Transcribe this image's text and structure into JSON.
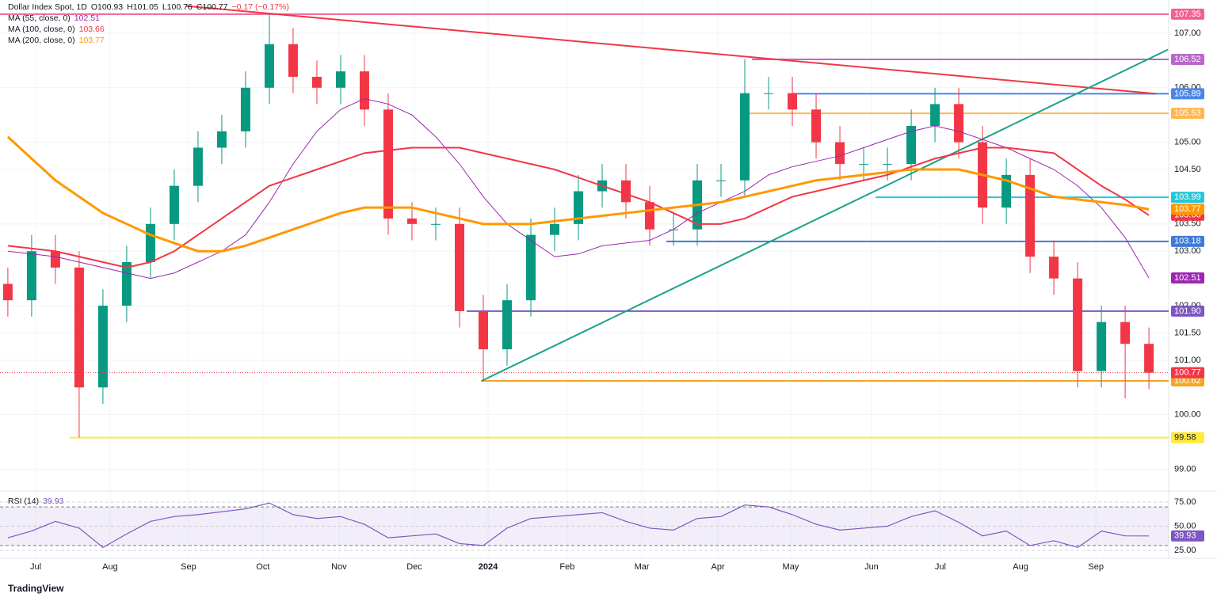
{
  "header": {
    "symbol": "Dollar Index Spot, 1D",
    "open": "O100.93",
    "high": "H101.05",
    "low": "L100.76",
    "close": "C100.77",
    "change": "−0.17 (−0.17%)"
  },
  "brand": "TradingView",
  "chart_data": [
    {
      "type": "candlestick",
      "up_color": "#089981",
      "down_color": "#f23645",
      "grid": true,
      "xlim": [
        -0.33,
        48.83
      ],
      "ylim": [
        98.6,
        107.61
      ],
      "xticks": [
        {
          "value": 1.17,
          "label": "Jul"
        },
        {
          "value": 4.3,
          "label": "Aug"
        },
        {
          "value": 7.6,
          "label": "Sep"
        },
        {
          "value": 10.73,
          "label": "Oct"
        },
        {
          "value": 13.93,
          "label": "Nov"
        },
        {
          "value": 17.1,
          "label": "Dec"
        },
        {
          "value": 20.2,
          "label": "2024"
        },
        {
          "value": 23.53,
          "label": "Feb"
        },
        {
          "value": 26.67,
          "label": "Mar"
        },
        {
          "value": 29.87,
          "label": "Apr"
        },
        {
          "value": 32.93,
          "label": "May"
        },
        {
          "value": 36.33,
          "label": "Jun"
        },
        {
          "value": 39.23,
          "label": "Jul"
        },
        {
          "value": 42.6,
          "label": "Aug"
        },
        {
          "value": 45.77,
          "label": "Sep"
        }
      ],
      "yticks": [
        {
          "value": 99,
          "label": "99.00"
        },
        {
          "value": 100,
          "label": "100.00"
        },
        {
          "value": 101,
          "label": "101.00"
        },
        {
          "value": 101.5,
          "label": "101.50"
        },
        {
          "value": 102,
          "label": "102.00"
        },
        {
          "value": 103,
          "label": "103.00"
        },
        {
          "value": 103.5,
          "label": "103.50"
        },
        {
          "value": 104.5,
          "label": "104.50"
        },
        {
          "value": 105,
          "label": "105.00"
        },
        {
          "value": 106,
          "label": "106.00"
        },
        {
          "value": 107,
          "label": "107.00"
        }
      ],
      "open": [
        102.4,
        102.1,
        103.0,
        102.7,
        100.5,
        102.0,
        102.8,
        103.5,
        104.2,
        104.9,
        105.2,
        106.0,
        106.8,
        106.2,
        106.0,
        106.3,
        105.6,
        103.6,
        103.5,
        103.5,
        101.9,
        101.2,
        102.1,
        103.3,
        103.5,
        104.1,
        104.3,
        103.9,
        103.4,
        103.4,
        104.3,
        104.3,
        105.9,
        105.9,
        105.6,
        105.0,
        104.6,
        104.6,
        104.6,
        105.3,
        105.7,
        105.0,
        103.8,
        104.4,
        102.9,
        102.5,
        100.8,
        101.7,
        101.3
      ],
      "high": [
        102.7,
        103.3,
        103.3,
        103.0,
        102.3,
        103.1,
        103.8,
        104.5,
        105.2,
        105.5,
        106.3,
        107.35,
        107.1,
        106.5,
        106.6,
        106.6,
        105.9,
        103.9,
        103.8,
        103.8,
        102.2,
        102.4,
        103.6,
        103.8,
        104.4,
        104.6,
        104.6,
        104.2,
        103.7,
        104.6,
        104.6,
        106.52,
        106.2,
        106.2,
        105.9,
        105.3,
        104.9,
        104.9,
        105.6,
        106.0,
        106.0,
        105.3,
        104.7,
        104.7,
        103.2,
        102.8,
        102.0,
        102.0,
        101.6
      ],
      "low": [
        101.8,
        101.8,
        102.4,
        99.58,
        100.2,
        101.7,
        102.5,
        103.2,
        103.9,
        104.6,
        104.9,
        105.7,
        105.9,
        105.7,
        105.7,
        105.3,
        103.3,
        103.2,
        103.2,
        101.6,
        100.62,
        100.9,
        101.8,
        103.0,
        103.2,
        103.8,
        103.6,
        103.1,
        103.1,
        103.1,
        104.0,
        104.0,
        105.6,
        105.3,
        104.7,
        104.3,
        104.3,
        104.3,
        104.3,
        105.0,
        104.7,
        103.5,
        103.5,
        102.6,
        102.2,
        100.5,
        100.5,
        100.3,
        100.47
      ],
      "close": [
        102.1,
        103.0,
        102.7,
        100.5,
        102.0,
        102.8,
        103.5,
        104.2,
        104.9,
        105.2,
        106.0,
        106.8,
        106.2,
        106.0,
        106.3,
        105.6,
        103.6,
        103.5,
        103.5,
        101.9,
        101.2,
        102.1,
        103.3,
        103.5,
        104.1,
        104.3,
        103.9,
        103.4,
        103.4,
        104.3,
        104.3,
        105.9,
        105.9,
        105.6,
        105.0,
        104.6,
        104.6,
        104.6,
        105.3,
        105.7,
        105.0,
        103.8,
        104.4,
        102.9,
        102.5,
        100.8,
        101.7,
        101.3,
        100.77
      ],
      "series": [
        {
          "name": "MA (55, close, 0)",
          "color": "#9c27b0",
          "width": 1,
          "values": [
            103.0,
            102.95,
            102.9,
            102.8,
            102.7,
            102.6,
            102.5,
            102.6,
            102.8,
            103.0,
            103.3,
            103.9,
            104.6,
            105.2,
            105.6,
            105.8,
            105.7,
            105.5,
            105.1,
            104.6,
            104.0,
            103.5,
            103.2,
            102.9,
            102.95,
            103.1,
            103.15,
            103.2,
            103.4,
            103.7,
            103.9,
            104.1,
            104.4,
            104.55,
            104.65,
            104.75,
            104.9,
            105.05,
            105.2,
            105.3,
            105.2,
            105.05,
            104.9,
            104.7,
            104.5,
            104.2,
            103.8,
            103.25,
            102.51
          ]
        },
        {
          "name": "MA (100, close, 0)",
          "color": "#f23645",
          "width": 2,
          "values": [
            103.1,
            103.05,
            103.0,
            102.9,
            102.8,
            102.7,
            102.8,
            103.0,
            103.3,
            103.6,
            103.9,
            104.2,
            104.35,
            104.5,
            104.65,
            104.8,
            104.85,
            104.9,
            104.9,
            104.9,
            104.8,
            104.7,
            104.6,
            104.5,
            104.35,
            104.2,
            104.05,
            103.9,
            103.7,
            103.5,
            103.5,
            103.6,
            103.8,
            104.0,
            104.1,
            104.2,
            104.3,
            104.4,
            104.55,
            104.7,
            104.8,
            104.9,
            104.9,
            104.85,
            104.8,
            104.5,
            104.2,
            103.95,
            103.66
          ]
        },
        {
          "name": "MA (200, close, 0)",
          "color": "#ff9800",
          "width": 3,
          "values": [
            105.1,
            104.7,
            104.3,
            104.0,
            103.7,
            103.5,
            103.3,
            103.15,
            103.0,
            103.0,
            103.1,
            103.25,
            103.4,
            103.55,
            103.7,
            103.8,
            103.8,
            103.8,
            103.7,
            103.6,
            103.5,
            103.5,
            103.5,
            103.55,
            103.6,
            103.65,
            103.7,
            103.75,
            103.8,
            103.85,
            103.9,
            104.0,
            104.1,
            104.2,
            104.3,
            104.35,
            104.4,
            104.45,
            104.5,
            104.5,
            104.5,
            104.4,
            104.3,
            104.15,
            104.0,
            103.95,
            103.9,
            103.85,
            103.77
          ]
        }
      ],
      "levels": [
        {
          "value": 107.35,
          "label": "107.35",
          "color": "#f06292",
          "from": -0.33
        },
        {
          "value": 106.52,
          "label": "106.52",
          "color": "#ba68c8",
          "from": 31.3
        },
        {
          "value": 105.89,
          "label": "105.89",
          "color": "#4a86e8",
          "from": 33
        },
        {
          "value": 105.53,
          "label": "105.53",
          "color": "#ffb74d",
          "from": 31
        },
        {
          "value": 103.99,
          "label": "103.99",
          "color": "#26c6da",
          "from": 36.5
        },
        {
          "value": 103.18,
          "label": "103.18",
          "color": "#3f7ad8",
          "from": 27.7
        },
        {
          "value": 101.9,
          "label": "101.90",
          "color": "#7e57c2",
          "from": 19.3
        },
        {
          "value": 100.62,
          "label": "100.62",
          "color": "#f5a623",
          "from": 19.9
        },
        {
          "value": 99.58,
          "label": "99.58",
          "color": "#ffeb3b",
          "from": 2.6
        }
      ],
      "trendlines": [
        {
          "color": "#f23645",
          "x": [
            7.5,
            48.3
          ],
          "values": [
            107.5,
            105.89
          ]
        },
        {
          "color": "#1aa38a",
          "x": [
            19.93,
            48.8
          ],
          "values": [
            100.62,
            106.7
          ]
        }
      ]
    },
    {
      "type": "line",
      "name": "RSI (14)",
      "color": "#7e57c2",
      "xlim": [
        -0.33,
        48.83
      ],
      "ylim": [
        16.8,
        86.5
      ],
      "yticks": [
        {
          "value": 25,
          "label": "25.00"
        },
        {
          "value": 50,
          "label": "50.00"
        },
        {
          "value": 75,
          "label": "75.00"
        }
      ],
      "bands": [
        30,
        70
      ],
      "values": [
        38,
        45,
        55,
        48,
        28,
        42,
        55,
        60,
        62,
        65,
        68,
        74,
        62,
        58,
        60,
        52,
        38,
        40,
        42,
        32,
        30,
        48,
        58,
        60,
        62,
        64,
        55,
        48,
        46,
        58,
        60,
        72,
        70,
        62,
        52,
        46,
        48,
        50,
        60,
        66,
        54,
        40,
        45,
        30,
        35,
        28,
        45,
        40,
        39.93
      ]
    }
  ]
}
